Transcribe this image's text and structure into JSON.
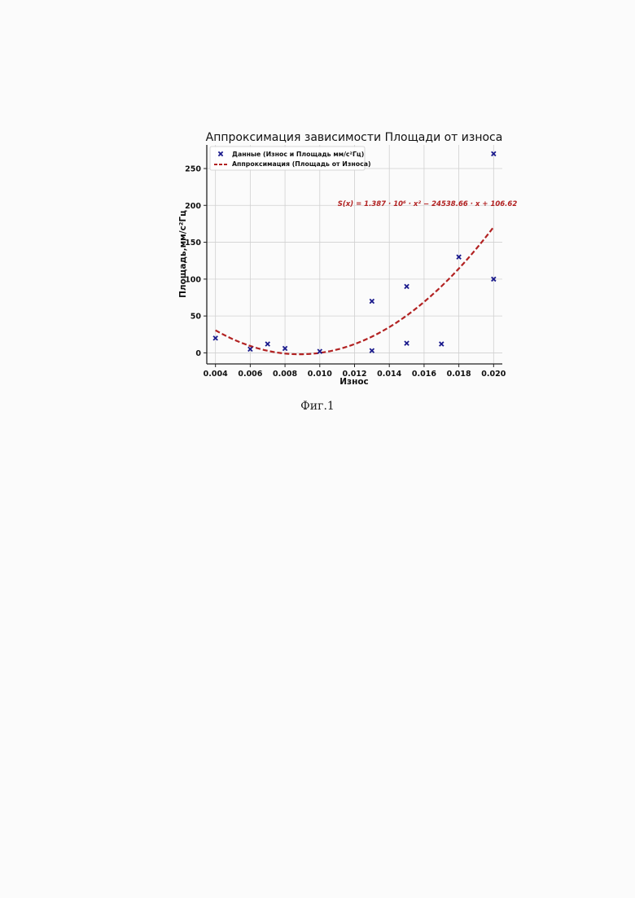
{
  "caption": "Фиг.1",
  "chart_data": {
    "type": "scatter",
    "title": "Аппроксимация зависимости Площади от износа",
    "xlabel": "Износ",
    "ylabel": "Площадь,мм/с²Гц",
    "xlim": [
      0.0035,
      0.0205
    ],
    "ylim": [
      -15,
      282
    ],
    "xticks": [
      "0.004",
      "0.006",
      "0.008",
      "0.010",
      "0.012",
      "0.014",
      "0.016",
      "0.018",
      "0.020"
    ],
    "yticks": [
      "0",
      "50",
      "100",
      "150",
      "200",
      "250"
    ],
    "grid": true,
    "legend": "top-left",
    "equation": "S(x) = 1.387 · 10⁶ · x² − 24538.66 · x + 106.62",
    "series": [
      {
        "name": "Данные (Износ и Площадь мм/с²Гц)",
        "kind": "scatter",
        "marker": "x",
        "color": "#1a1a8c",
        "x": [
          0.004,
          0.006,
          0.007,
          0.008,
          0.01,
          0.013,
          0.013,
          0.015,
          0.015,
          0.017,
          0.018,
          0.02,
          0.02
        ],
        "y": [
          20,
          5,
          12,
          6,
          2,
          70,
          3,
          90,
          13,
          12,
          130,
          270,
          100
        ]
      },
      {
        "name": "Аппроксимация (Площадь от Износа)",
        "kind": "line",
        "style": "dashed",
        "color": "#b22222",
        "fit": {
          "a": 1387000,
          "b": -24538.66,
          "c": 106.62,
          "x_from": 0.004,
          "x_to": 0.02
        }
      }
    ]
  }
}
